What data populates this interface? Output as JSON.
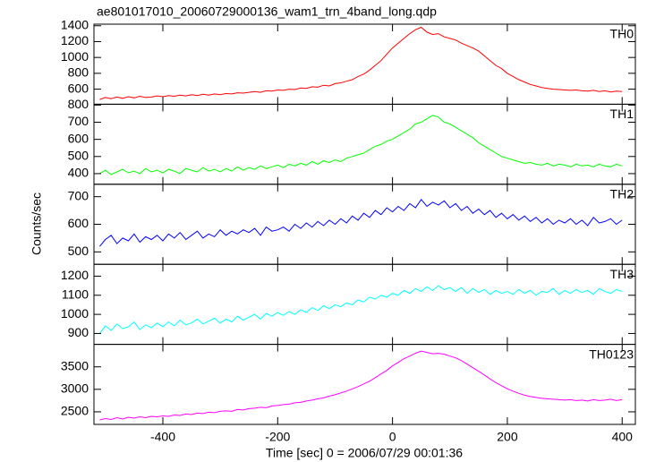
{
  "chart_data": {
    "type": "line",
    "title": "ae801017010_20060729000136_wam1_trn_4band_long.qdp",
    "x_label": "Time [sec] 0 = 2006/07/29 00:01:36",
    "y_label": "Counts/sec",
    "xlim": [
      -520,
      423
    ],
    "xticks": [
      -400,
      -200,
      0,
      200,
      400
    ],
    "x": [
      -510,
      -500,
      -490,
      -480,
      -470,
      -460,
      -450,
      -440,
      -430,
      -420,
      -410,
      -400,
      -390,
      -380,
      -370,
      -360,
      -350,
      -340,
      -330,
      -320,
      -310,
      -300,
      -290,
      -280,
      -270,
      -260,
      -250,
      -240,
      -230,
      -220,
      -210,
      -200,
      -190,
      -180,
      -170,
      -160,
      -150,
      -140,
      -130,
      -120,
      -110,
      -100,
      -90,
      -80,
      -70,
      -60,
      -50,
      -40,
      -30,
      -20,
      -10,
      0,
      10,
      20,
      30,
      40,
      50,
      60,
      70,
      80,
      90,
      100,
      110,
      120,
      130,
      140,
      150,
      160,
      170,
      180,
      190,
      200,
      210,
      220,
      230,
      240,
      250,
      260,
      270,
      280,
      290,
      300,
      310,
      320,
      330,
      340,
      350,
      360,
      370,
      380,
      390,
      400
    ],
    "series": [
      {
        "name": "TH0",
        "color": "#ff0000",
        "ylim": [
          410,
          1420
        ],
        "yticks": [
          600,
          800,
          1000,
          1200,
          1400
        ],
        "values": [
          470,
          495,
          480,
          500,
          485,
          505,
          490,
          510,
          495,
          500,
          515,
          505,
          520,
          510,
          525,
          515,
          530,
          520,
          535,
          525,
          540,
          530,
          545,
          540,
          555,
          550,
          560,
          570,
          560,
          580,
          575,
          590,
          585,
          600,
          595,
          615,
          610,
          630,
          625,
          650,
          640,
          670,
          680,
          700,
          720,
          760,
          790,
          840,
          900,
          960,
          1040,
          1120,
          1180,
          1240,
          1300,
          1350,
          1380,
          1320,
          1290,
          1300,
          1260,
          1240,
          1220,
          1180,
          1150,
          1120,
          1080,
          1020,
          960,
          900,
          860,
          800,
          760,
          720,
          690,
          660,
          640,
          620,
          610,
          600,
          595,
          590,
          585,
          590,
          580,
          575,
          585,
          570,
          580,
          565,
          575,
          570
        ]
      },
      {
        "name": "TH1",
        "color": "#00ff00",
        "ylim": [
          338,
          805
        ],
        "yticks": [
          400,
          500,
          600,
          700,
          800
        ],
        "values": [
          400,
          420,
          395,
          410,
          425,
          405,
          415,
          400,
          430,
          410,
          420,
          405,
          425,
          415,
          400,
          430,
          420,
          410,
          435,
          415,
          425,
          410,
          430,
          415,
          440,
          420,
          435,
          425,
          445,
          430,
          440,
          450,
          435,
          455,
          445,
          460,
          450,
          470,
          455,
          475,
          465,
          480,
          470,
          490,
          500,
          510,
          520,
          540,
          560,
          570,
          590,
          600,
          620,
          640,
          660,
          690,
          700,
          720,
          740,
          730,
          700,
          690,
          670,
          650,
          630,
          610,
          580,
          560,
          540,
          520,
          500,
          490,
          480,
          470,
          460,
          465,
          455,
          450,
          460,
          445,
          455,
          450,
          440,
          455,
          445,
          450,
          440,
          455,
          445,
          440,
          455,
          445
        ]
      },
      {
        "name": "TH2",
        "color": "#0000ff",
        "ylim": [
          455,
          745
        ],
        "yticks": [
          500,
          600,
          700
        ],
        "values": [
          520,
          545,
          560,
          530,
          550,
          540,
          565,
          535,
          555,
          545,
          560,
          540,
          565,
          550,
          570,
          545,
          560,
          575,
          550,
          565,
          555,
          580,
          560,
          575,
          565,
          580,
          570,
          585,
          560,
          590,
          575,
          580,
          590,
          575,
          600,
          585,
          605,
          590,
          610,
          595,
          615,
          600,
          620,
          605,
          630,
          615,
          640,
          625,
          650,
          635,
          660,
          645,
          665,
          650,
          675,
          660,
          690,
          665,
          680,
          670,
          685,
          660,
          675,
          650,
          665,
          640,
          655,
          635,
          650,
          625,
          640,
          620,
          635,
          615,
          630,
          610,
          625,
          605,
          620,
          600,
          615,
          605,
          620,
          600,
          615,
          595,
          625,
          605,
          610,
          620,
          600,
          615
        ]
      },
      {
        "name": "TH3",
        "color": "#00ffff",
        "ylim": [
          843,
          1262
        ],
        "yticks": [
          900,
          1000,
          1100,
          1200
        ],
        "values": [
          900,
          940,
          915,
          950,
          925,
          935,
          960,
          920,
          945,
          930,
          955,
          935,
          960,
          940,
          970,
          945,
          955,
          975,
          950,
          965,
          980,
          955,
          975,
          960,
          990,
          970,
          985,
          1000,
          975,
          1005,
          990,
          1010,
          995,
          1015,
          1000,
          1025,
          1010,
          1035,
          1020,
          1045,
          1030,
          1050,
          1040,
          1060,
          1050,
          1075,
          1065,
          1090,
          1080,
          1100,
          1090,
          1110,
          1100,
          1125,
          1110,
          1135,
          1120,
          1145,
          1125,
          1150,
          1130,
          1140,
          1120,
          1140,
          1110,
          1135,
          1115,
          1130,
          1105,
          1125,
          1110,
          1120,
          1105,
          1130,
          1110,
          1125,
          1100,
          1120,
          1115,
          1135,
          1105,
          1125,
          1110,
          1130,
          1115,
          1125,
          1105,
          1135,
          1120,
          1110,
          1130,
          1120
        ]
      },
      {
        "name": "TH0123",
        "color": "#ff00ff",
        "ylim": [
          2220,
          4000
        ],
        "yticks": [
          2500,
          3000,
          3500
        ],
        "values": [
          2320,
          2350,
          2330,
          2370,
          2340,
          2380,
          2360,
          2390,
          2370,
          2400,
          2390,
          2410,
          2400,
          2430,
          2420,
          2450,
          2440,
          2470,
          2460,
          2490,
          2480,
          2510,
          2520,
          2510,
          2550,
          2540,
          2570,
          2580,
          2600,
          2590,
          2630,
          2640,
          2660,
          2670,
          2700,
          2710,
          2740,
          2760,
          2790,
          2810,
          2850,
          2880,
          2920,
          2960,
          3010,
          3060,
          3120,
          3180,
          3260,
          3340,
          3420,
          3520,
          3600,
          3680,
          3740,
          3800,
          3850,
          3820,
          3790,
          3800,
          3780,
          3740,
          3700,
          3640,
          3560,
          3480,
          3400,
          3320,
          3230,
          3150,
          3080,
          3010,
          2960,
          2910,
          2870,
          2840,
          2820,
          2800,
          2790,
          2780,
          2770,
          2760,
          2770,
          2750,
          2760,
          2740,
          2770,
          2750,
          2760,
          2780,
          2750,
          2770
        ]
      }
    ]
  }
}
